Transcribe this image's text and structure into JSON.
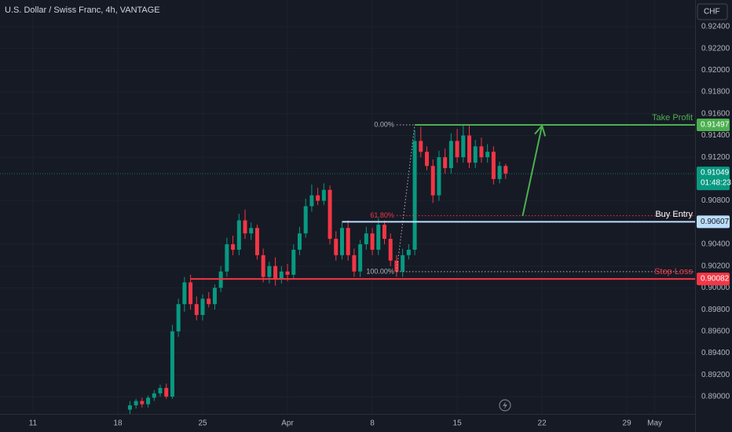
{
  "chart_data": {
    "type": "candlestick",
    "title": "U.S. Dollar / Swiss Franc, 4h, VANTAGE",
    "currency": "CHF",
    "up_color": "#089981",
    "down_color": "#f23645",
    "xlim": [
      8.28,
      65.63
    ],
    "ylim": [
      0.88841,
      0.92645
    ],
    "xticks": [
      {
        "value": 11,
        "label": "11"
      },
      {
        "value": 18,
        "label": "18"
      },
      {
        "value": 25,
        "label": "25"
      },
      {
        "value": 32,
        "label": "Apr"
      },
      {
        "value": 39,
        "label": "8"
      },
      {
        "value": 46,
        "label": "15"
      },
      {
        "value": 53,
        "label": "22"
      },
      {
        "value": 60,
        "label": "29"
      },
      {
        "value": 62.3,
        "label": "May"
      }
    ],
    "yticks": [
      {
        "value": 0.924,
        "label": "0.92400"
      },
      {
        "value": 0.922,
        "label": "0.92200"
      },
      {
        "value": 0.92,
        "label": "0.92000"
      },
      {
        "value": 0.918,
        "label": "0.91800"
      },
      {
        "value": 0.916,
        "label": "0.91600"
      },
      {
        "value": 0.914,
        "label": "0.91400"
      },
      {
        "value": 0.912,
        "label": "0.91200"
      },
      {
        "value": 0.908,
        "label": "0.90800"
      },
      {
        "value": 0.904,
        "label": "0.90400"
      },
      {
        "value": 0.902,
        "label": "0.90200"
      },
      {
        "value": 0.9,
        "label": "0.90000"
      },
      {
        "value": 0.898,
        "label": "0.89800"
      },
      {
        "value": 0.896,
        "label": "0.89600"
      },
      {
        "value": 0.894,
        "label": "0.89400"
      },
      {
        "value": 0.892,
        "label": "0.89200"
      },
      {
        "value": 0.89,
        "label": "0.89000"
      }
    ],
    "x": [
      19,
      19.5,
      20,
      20.5,
      21,
      21.5,
      22,
      22.5,
      23,
      23.5,
      24,
      24.5,
      25,
      25.5,
      26,
      26.5,
      27,
      27.5,
      28,
      28.5,
      29,
      29.5,
      30,
      30.5,
      31,
      31.5,
      32,
      32.5,
      33,
      33.5,
      34,
      34.5,
      35,
      35.5,
      36,
      36.5,
      37,
      37.5,
      38,
      38.5,
      39,
      39.5,
      40,
      40.5,
      41,
      41.5,
      42,
      42.5,
      43,
      43.5,
      44,
      44.5,
      45,
      45.5,
      46,
      46.5,
      47,
      47.5,
      48,
      48.5,
      49,
      49.5,
      50
    ],
    "open": [
      0.8888,
      0.8892,
      0.8896,
      0.8893,
      0.8899,
      0.8903,
      0.8908,
      0.89,
      0.896,
      0.8985,
      0.9005,
      0.8985,
      0.8975,
      0.899,
      0.8985,
      0.9,
      0.9015,
      0.904,
      0.9035,
      0.9062,
      0.905,
      0.9055,
      0.903,
      0.901,
      0.902,
      0.9008,
      0.9015,
      0.9012,
      0.9035,
      0.905,
      0.9075,
      0.9085,
      0.908,
      0.909,
      0.9045,
      0.903,
      0.9055,
      0.903,
      0.9015,
      0.904,
      0.905,
      0.9035,
      0.9058,
      0.9045,
      0.9025,
      0.9015,
      0.903,
      0.9035,
      0.9135,
      0.9125,
      0.9112,
      0.9085,
      0.912,
      0.911,
      0.9135,
      0.912,
      0.914,
      0.9115,
      0.913,
      0.912,
      0.9125,
      0.91,
      0.9112
    ],
    "high": [
      0.8896,
      0.8898,
      0.8899,
      0.8901,
      0.8906,
      0.8911,
      0.8912,
      0.8966,
      0.899,
      0.901,
      0.9012,
      0.8992,
      0.8994,
      0.8996,
      0.9003,
      0.902,
      0.9046,
      0.9048,
      0.9068,
      0.9072,
      0.906,
      0.9058,
      0.9036,
      0.9024,
      0.9028,
      0.902,
      0.9022,
      0.904,
      0.9056,
      0.9082,
      0.9095,
      0.9092,
      0.9096,
      0.9094,
      0.9052,
      0.906,
      0.9062,
      0.9036,
      0.9044,
      0.9056,
      0.9055,
      0.9064,
      0.9062,
      0.905,
      0.903,
      0.9036,
      0.904,
      0.9145,
      0.9148,
      0.913,
      0.9118,
      0.9126,
      0.9128,
      0.9142,
      0.9146,
      0.915,
      0.915,
      0.9136,
      0.9138,
      0.9132,
      0.913,
      0.9116,
      0.9114
    ],
    "low": [
      0.8884,
      0.8889,
      0.889,
      0.889,
      0.8896,
      0.89,
      0.8898,
      0.8898,
      0.8955,
      0.8978,
      0.898,
      0.897,
      0.897,
      0.8982,
      0.898,
      0.8996,
      0.901,
      0.903,
      0.903,
      0.9045,
      0.9044,
      0.9026,
      0.9005,
      0.9004,
      0.9002,
      0.9004,
      0.9006,
      0.9008,
      0.903,
      0.9046,
      0.907,
      0.9076,
      0.9076,
      0.904,
      0.9025,
      0.9026,
      0.9025,
      0.901,
      0.901,
      0.9035,
      0.903,
      0.903,
      0.904,
      0.902,
      0.901,
      0.901,
      0.9026,
      0.903,
      0.912,
      0.9108,
      0.9078,
      0.908,
      0.9105,
      0.9105,
      0.9115,
      0.9115,
      0.911,
      0.911,
      0.9115,
      0.9115,
      0.9095,
      0.9096,
      0.91
    ],
    "close": [
      0.8892,
      0.8896,
      0.8893,
      0.8899,
      0.8903,
      0.8908,
      0.89,
      0.896,
      0.8985,
      0.9005,
      0.8985,
      0.8975,
      0.899,
      0.8985,
      0.9,
      0.9015,
      0.904,
      0.9035,
      0.9062,
      0.905,
      0.9055,
      0.903,
      0.901,
      0.902,
      0.9008,
      0.9015,
      0.9012,
      0.9035,
      0.905,
      0.9075,
      0.9085,
      0.908,
      0.909,
      0.9045,
      0.903,
      0.9055,
      0.903,
      0.9015,
      0.904,
      0.905,
      0.9035,
      0.9058,
      0.9045,
      0.9025,
      0.9015,
      0.903,
      0.9035,
      0.9135,
      0.9125,
      0.9112,
      0.9085,
      0.912,
      0.911,
      0.9135,
      0.912,
      0.914,
      0.9115,
      0.913,
      0.912,
      0.9125,
      0.91,
      0.9112,
      0.9105
    ],
    "last_price": 0.91049,
    "last_price_color": "#089981",
    "countdown": "01:48:23",
    "levels": [
      {
        "name": "Take Profit",
        "value": 0.91497,
        "color": "#4caf50",
        "x_start": 42.5
      },
      {
        "name": "Buy Entry",
        "value": 0.90607,
        "color": "#bbdefb",
        "x_start": 36.5
      },
      {
        "name": "Stop Loss",
        "value": 0.90082,
        "color": "#f23645",
        "x_start": 24
      }
    ],
    "fib": [
      {
        "label": "0.00%",
        "value": 0.91497,
        "color": "#b2b5be"
      },
      {
        "label": "61.80%",
        "value": 0.90663,
        "color": "#f23645"
      },
      {
        "label": "100.00%",
        "value": 0.90148,
        "color": "#b2b5be"
      }
    ],
    "fib_x_start": 41,
    "arrow": {
      "x": [
        51.4,
        53
      ],
      "y": [
        0.9066,
        0.9149
      ],
      "color": "#4caf50"
    }
  }
}
